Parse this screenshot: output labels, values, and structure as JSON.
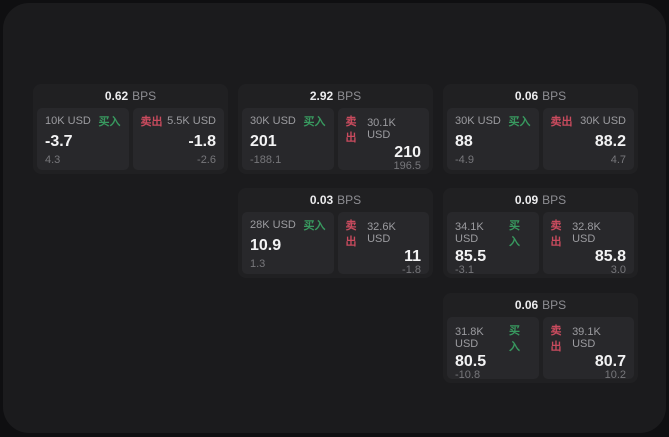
{
  "labels": {
    "bps_unit": "BPS",
    "buy": "买入",
    "sell": "卖出"
  },
  "colors": {
    "background": "#0f0f11",
    "frame": "#1b1b1d",
    "card": "#202022",
    "panel": "#28282b",
    "buy_accent": "#38995f",
    "sell_accent": "#c94b5e",
    "value_text": "#f3f3f4",
    "muted_text": "#9c9ca0"
  },
  "cards": [
    {
      "bps": "0.62",
      "buy": {
        "size": "10K USD",
        "price": "-3.7",
        "delta": "4.3"
      },
      "sell": {
        "size": "5.5K USD",
        "price": "-1.8",
        "delta": "-2.6"
      }
    },
    {
      "bps": "2.92",
      "buy": {
        "size": "30K USD",
        "price": "201",
        "delta": "-188.1"
      },
      "sell": {
        "size": "30.1K USD",
        "price": "210",
        "delta": "196.5"
      }
    },
    {
      "bps": "0.06",
      "buy": {
        "size": "30K USD",
        "price": "88",
        "delta": "-4.9"
      },
      "sell": {
        "size": "30K USD",
        "price": "88.2",
        "delta": "4.7"
      }
    },
    {
      "bps": "0.03",
      "buy": {
        "size": "28K USD",
        "price": "10.9",
        "delta": "1.3"
      },
      "sell": {
        "size": "32.6K USD",
        "price": "11",
        "delta": "-1.8"
      }
    },
    {
      "bps": "0.09",
      "buy": {
        "size": "34.1K USD",
        "price": "85.5",
        "delta": "-3.1"
      },
      "sell": {
        "size": "32.8K USD",
        "price": "85.8",
        "delta": "3.0"
      }
    },
    {
      "bps": "0.06",
      "buy": {
        "size": "31.8K USD",
        "price": "80.5",
        "delta": "-10.8"
      },
      "sell": {
        "size": "39.1K USD",
        "price": "80.7",
        "delta": "10.2"
      }
    }
  ]
}
